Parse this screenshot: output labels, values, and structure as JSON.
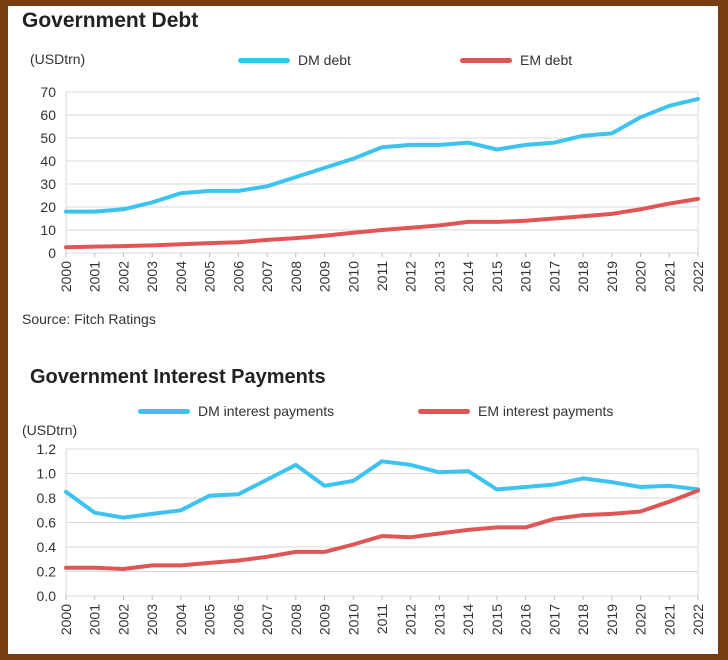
{
  "chart_data": [
    {
      "type": "line",
      "title": "Government Debt",
      "ylabel": "(USDtrn)",
      "ylim": [
        0,
        70
      ],
      "yticks": [
        0,
        10,
        20,
        30,
        40,
        50,
        60,
        70
      ],
      "categories": [
        "2000",
        "2001",
        "2002",
        "2003",
        "2004",
        "2005",
        "2006",
        "2007",
        "2008",
        "2009",
        "2010",
        "2011",
        "2012",
        "2013",
        "2014",
        "2015",
        "2016",
        "2017",
        "2018",
        "2019",
        "2020",
        "2021",
        "2022"
      ],
      "series": [
        {
          "name": "DM debt",
          "color": "#3cc3f0",
          "values": [
            18,
            18,
            19,
            22,
            26,
            27,
            27,
            29,
            33,
            37,
            41,
            46,
            47,
            47,
            48,
            45,
            47,
            48,
            51,
            52,
            59,
            64,
            67
          ]
        },
        {
          "name": "EM debt",
          "color": "#e05555",
          "values": [
            2.5,
            2.8,
            3,
            3.3,
            3.8,
            4.3,
            4.7,
            5.7,
            6.5,
            7.5,
            8.8,
            10,
            11,
            12,
            13.5,
            13.5,
            14,
            15,
            16,
            17,
            19,
            21.5,
            23.5
          ]
        }
      ],
      "source": "Source: Fitch Ratings",
      "grid": true,
      "legend": "top"
    },
    {
      "type": "line",
      "title": "Government Interest Payments",
      "ylabel": "(USDtrn)",
      "ylim": [
        0,
        1.2
      ],
      "yticks": [
        "0.0",
        "0.2",
        "0.4",
        "0.6",
        "0.8",
        "1.0",
        "1.2"
      ],
      "categories": [
        "2000",
        "2001",
        "2002",
        "2003",
        "2004",
        "2005",
        "2006",
        "2007",
        "2008",
        "2009",
        "2010",
        "2011",
        "2012",
        "2013",
        "2014",
        "2015",
        "2016",
        "2017",
        "2018",
        "2019",
        "2020",
        "2021",
        "2022"
      ],
      "series": [
        {
          "name": "DM interest payments",
          "color": "#3cc3f0",
          "values": [
            0.85,
            0.68,
            0.64,
            0.67,
            0.7,
            0.82,
            0.83,
            0.95,
            1.07,
            0.9,
            0.94,
            1.1,
            1.07,
            1.01,
            1.02,
            0.87,
            0.89,
            0.91,
            0.96,
            0.93,
            0.89,
            0.9,
            0.87
          ]
        },
        {
          "name": "EM interest payments",
          "color": "#e05555",
          "values": [
            0.23,
            0.23,
            0.22,
            0.25,
            0.25,
            0.27,
            0.29,
            0.32,
            0.36,
            0.36,
            0.42,
            0.49,
            0.48,
            0.51,
            0.54,
            0.56,
            0.56,
            0.63,
            0.66,
            0.67,
            0.69,
            0.77,
            0.86
          ]
        }
      ],
      "grid": true,
      "legend": "top"
    }
  ]
}
